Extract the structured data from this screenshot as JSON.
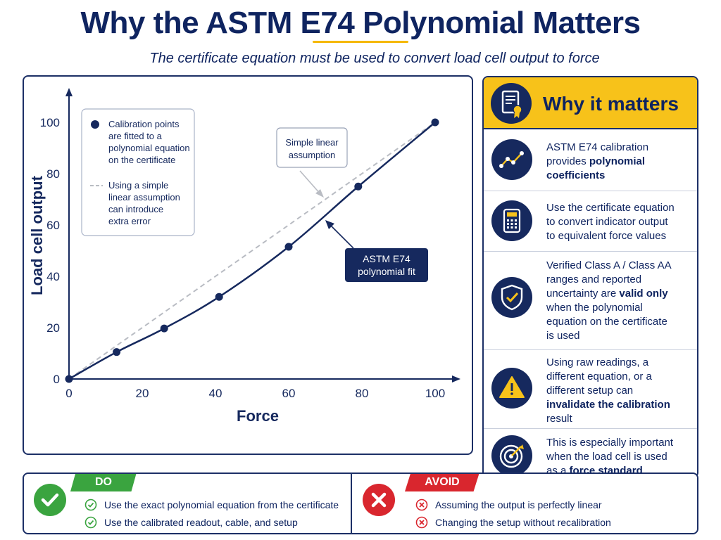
{
  "header": {
    "title": "Why the ASTM E74 Polynomial Matters",
    "subtitle": "The certificate equation must be used to convert load cell output to force"
  },
  "chart_data": {
    "type": "line",
    "xlabel": "Force",
    "ylabel": "Load cell output",
    "xlim": [
      0,
      100
    ],
    "ylim": [
      0,
      100
    ],
    "x_ticks": [
      "0",
      "20",
      "40",
      "60",
      "80",
      "100"
    ],
    "y_ticks": [
      "0",
      "20",
      "40",
      "60",
      "80",
      "100"
    ],
    "grid": false,
    "series": [
      {
        "name": "ASTM E74 polynomial fit",
        "style": "solid",
        "color": "#16295e",
        "markers": true,
        "x": [
          0,
          13,
          26,
          41,
          60,
          79,
          100
        ],
        "y": [
          0,
          10.5,
          19.7,
          32,
          51.5,
          75,
          100
        ]
      },
      {
        "name": "Simple linear assumption",
        "style": "dashed",
        "color": "#b9bcc3",
        "markers": false,
        "x": [
          0,
          100
        ],
        "y": [
          0,
          100
        ]
      }
    ],
    "legend": {
      "position": "top-left",
      "points_text": [
        "Calibration points",
        "are fitted to a",
        "polynomial equation",
        "on the certificate"
      ],
      "dash_text": [
        "Using a simple",
        "linear assumption",
        "can introduce",
        "extra error"
      ]
    },
    "annotations": {
      "linear": [
        "Simple linear",
        "assumption"
      ],
      "poly": [
        "ASTM E74",
        "polynomial fit"
      ]
    }
  },
  "side": {
    "title": "Why it matters",
    "header_icon": "certificate-icon",
    "rows": [
      {
        "icon": "trend-line-icon",
        "parts": [
          {
            "t": "ASTM E74 calibration",
            "b": false
          },
          {
            "t": "provides ",
            "b": false
          },
          {
            "t": "polynomial",
            "b": true
          },
          {
            "t": "coefficients",
            "b": true
          }
        ],
        "lines": [
          [
            "0"
          ],
          [
            "1",
            "2"
          ],
          [
            "3"
          ]
        ]
      },
      {
        "icon": "calculator-icon",
        "parts": [
          {
            "t": "Use the certificate equation",
            "b": false
          },
          {
            "t": "to convert indicator output",
            "b": false
          },
          {
            "t": "to equivalent force values",
            "b": false
          }
        ],
        "lines": [
          [
            "0"
          ],
          [
            "1"
          ],
          [
            "2"
          ]
        ]
      },
      {
        "icon": "shield-check-icon",
        "parts": [
          {
            "t": "Verified Class A / Class AA",
            "b": false
          },
          {
            "t": "ranges and reported",
            "b": false
          },
          {
            "t": "uncertainty are ",
            "b": false
          },
          {
            "t": "valid only",
            "b": true
          },
          {
            "t": "when the polynomial",
            "b": false
          },
          {
            "t": "equation on the certificate",
            "b": false
          },
          {
            "t": "is used",
            "b": false
          }
        ],
        "lines": [
          [
            "0"
          ],
          [
            "1"
          ],
          [
            "2",
            "3"
          ],
          [
            "4"
          ],
          [
            "5"
          ],
          [
            "6"
          ]
        ]
      },
      {
        "icon": "warning-icon",
        "parts": [
          {
            "t": "Using raw readings, a",
            "b": false
          },
          {
            "t": "different equation, or a",
            "b": false
          },
          {
            "t": "different setup can",
            "b": false
          },
          {
            "t": "invalidate the calibration",
            "b": true
          },
          {
            "t": "result",
            "b": false
          }
        ],
        "lines": [
          [
            "0"
          ],
          [
            "1"
          ],
          [
            "2"
          ],
          [
            "3"
          ],
          [
            "4"
          ]
        ]
      },
      {
        "icon": "target-icon",
        "parts": [
          {
            "t": "This is especially important",
            "b": false
          },
          {
            "t": "when the load cell is used",
            "b": false
          },
          {
            "t": "as a ",
            "b": false
          },
          {
            "t": "force standard",
            "b": true
          }
        ],
        "lines": [
          [
            "0"
          ],
          [
            "1"
          ],
          [
            "2",
            "3"
          ]
        ]
      }
    ]
  },
  "do": {
    "tag": "DO",
    "items": [
      "Use the exact polynomial equation from the certificate",
      "Use the calibrated readout, cable, and setup"
    ]
  },
  "avoid": {
    "tag": "AVOID",
    "items": [
      "Assuming the output is perfectly linear",
      "Changing the setup without recalibration"
    ]
  }
}
